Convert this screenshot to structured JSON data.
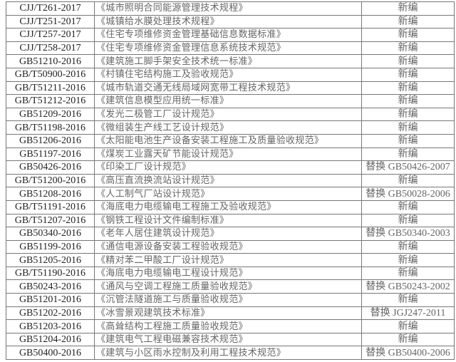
{
  "rows": [
    {
      "code": "CJJ/T261-2017",
      "name": "《城市照明合同能源管理技术规程》",
      "status": "新编"
    },
    {
      "code": "CJJ/T251-2017",
      "name": "《城镇给水膜处理技术规程》",
      "status": "新编"
    },
    {
      "code": "CJJ/T257-2017",
      "name": "《住宅专项维修资金管理基础信息数据标准》",
      "status": "新编"
    },
    {
      "code": "CJJ/T258-2017",
      "name": "《住宅专项维修资金管理信息系统技术规范》",
      "status": "新编"
    },
    {
      "code": "GB51210-2016",
      "name": "《建筑施工脚手架安全技术统一标准》",
      "status": "新编"
    },
    {
      "code": "GB/T50900-2016",
      "name": "《村镇住宅结构施工及验收规范》",
      "status": "新编"
    },
    {
      "code": "GB/T51211-2016",
      "name": "《城市轨道交通无线局域网宽带工程技术规范》",
      "status": "新编"
    },
    {
      "code": "GB/T51212-2016",
      "name": "《建筑信息模型应用统一标准》",
      "status": "新编"
    },
    {
      "code": "GB51209-2016",
      "name": "《发光二极管工厂设计规范》",
      "status": "新编"
    },
    {
      "code": "GB/T51198-2016",
      "name": "《微组装生产线工艺设计规范》",
      "status": "新编"
    },
    {
      "code": "GB51206-2016",
      "name": "《太阳能电池生产设备安装工程施工及质量验收规范》",
      "status": "新编"
    },
    {
      "code": "GB51197-2016",
      "name": "《煤炭工业露天矿节能设计规范》",
      "status": "新编"
    },
    {
      "code": "GB50426-2016",
      "name": "《印染工厂设计规范》",
      "status": "替换 GB50426-2007"
    },
    {
      "code": "GB/T51200-2016",
      "name": "《高压直流换流站设计规范》",
      "status": "新编"
    },
    {
      "code": "GB51208-2016",
      "name": "《人工制气厂站设计规范》",
      "status": "替换 GB50028-2006"
    },
    {
      "code": "GB/T51191-2016",
      "name": "《海底电力电缆输电工程施工及验收规范》",
      "status": "新编"
    },
    {
      "code": "GB/T51207-2016",
      "name": "《钢铁工程设计文件编制标准》",
      "status": "新编"
    },
    {
      "code": "GB50340-2016",
      "name": "《老年人居住建筑设计规范》",
      "status": "替换 GB50340-2003"
    },
    {
      "code": "GB51199-2016",
      "name": "《通信电源设备安装工程验收规范》",
      "status": "新编"
    },
    {
      "code": "GB51205-2016",
      "name": "《精对苯二甲酸工厂设计规范》",
      "status": "新编"
    },
    {
      "code": "GB/T51190-2016",
      "name": "《海底电力电缆输电工程设计规范》",
      "status": "新编"
    },
    {
      "code": "GB50243-2016",
      "name": "《通风与空调工程施工质量验收规范》",
      "status": "替换 GB50243-2002"
    },
    {
      "code": "GB51201-2016",
      "name": "《沉管法隧道施工与质量验收规范》",
      "status": "新编"
    },
    {
      "code": "GB51202-2016",
      "name": "《冰雪景观建筑技术标准》",
      "status": "替换 JGJ247-2011"
    },
    {
      "code": "GB51203-2016",
      "name": "《高耸结构工程施工质量验收规范》",
      "status": "新编"
    },
    {
      "code": "GB51204-2016",
      "name": "《建筑电气工程电磁兼容技术规范》",
      "status": "新编"
    },
    {
      "code": "GB50400-2016",
      "name": "《建筑与小区雨水控制及利用工程技术规范》",
      "status": "替换 GB50400-2006"
    }
  ]
}
